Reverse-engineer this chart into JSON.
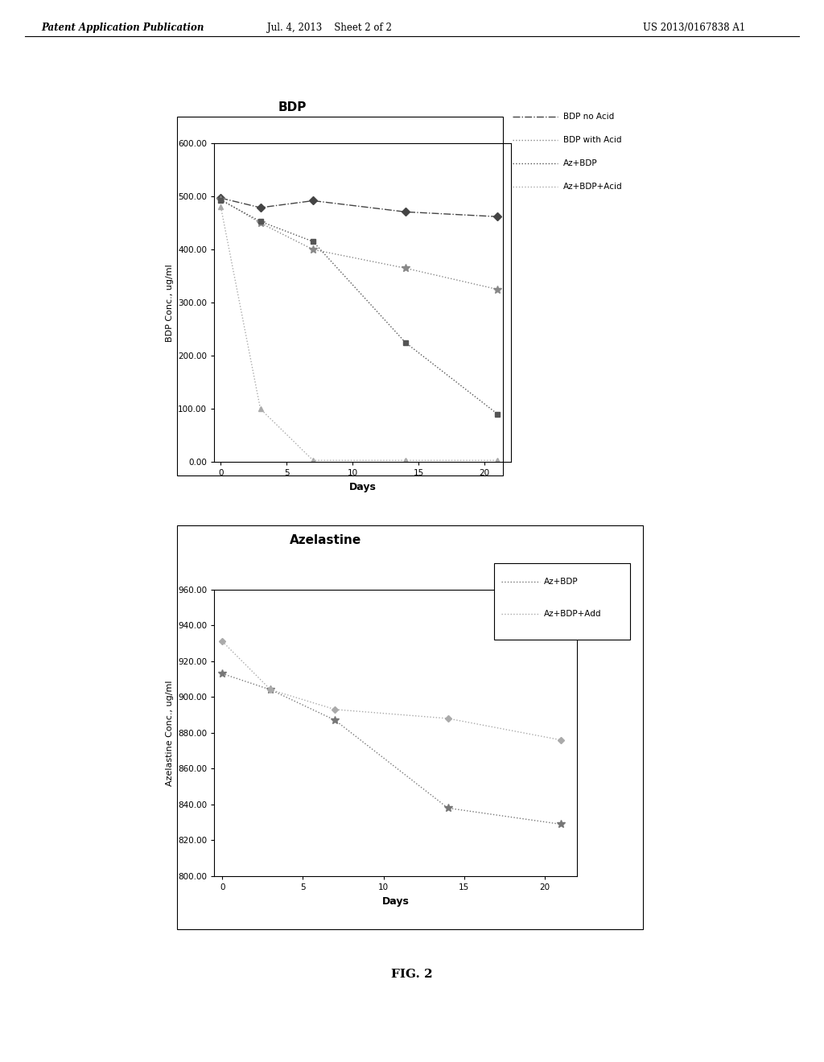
{
  "header_left": "Patent Application Publication",
  "header_center": "Jul. 4, 2013    Sheet 2 of 2",
  "header_right": "US 2013/0167838 A1",
  "fig_label": "FIG. 2",
  "chart1": {
    "title": "BDP",
    "xlabel": "Days",
    "ylabel": "BDP Conc., ug/ml",
    "ylim": [
      0,
      600
    ],
    "yticks": [
      0,
      100,
      200,
      300,
      400,
      500,
      600
    ],
    "ytick_labels": [
      "0.00",
      "100.00",
      "200.00",
      "300.00",
      "400.00",
      "500.00",
      "600.00"
    ],
    "xticks": [
      0,
      5,
      10,
      15,
      20
    ],
    "xlim": [
      -0.5,
      22
    ],
    "series": [
      {
        "label": "BDP no Acid",
        "x": [
          0,
          3,
          7,
          14,
          21
        ],
        "y": [
          497,
          479,
          492,
          471,
          462
        ],
        "color": "#444444",
        "linestyle": "-.",
        "marker": "D",
        "markersize": 5,
        "linewidth": 1.0
      },
      {
        "label": "BDP with Acid",
        "x": [
          0,
          3,
          7,
          14,
          21
        ],
        "y": [
          495,
          450,
          400,
          365,
          325
        ],
        "color": "#888888",
        "linestyle": ":",
        "marker": "*",
        "markersize": 7,
        "linewidth": 1.0
      },
      {
        "label": "Az+BDP",
        "x": [
          0,
          3,
          7,
          14,
          21
        ],
        "y": [
          493,
          453,
          415,
          225,
          90
        ],
        "color": "#555555",
        "linestyle": ":",
        "marker": "s",
        "markersize": 5,
        "linewidth": 1.0
      },
      {
        "label": "Az+BDP+Acid",
        "x": [
          0,
          3,
          7,
          14,
          21
        ],
        "y": [
          480,
          100,
          3,
          3,
          3
        ],
        "color": "#aaaaaa",
        "linestyle": ":",
        "marker": "^",
        "markersize": 5,
        "linewidth": 1.0
      }
    ]
  },
  "chart2": {
    "title": "Azelastine",
    "xlabel": "Days",
    "ylabel": "Azelastine Conc., ug/ml",
    "ylim": [
      800,
      960
    ],
    "yticks": [
      800,
      820,
      840,
      860,
      880,
      900,
      920,
      940,
      960
    ],
    "ytick_labels": [
      "800.00",
      "820.00",
      "840.00",
      "860.00",
      "880.00",
      "900.00",
      "920.00",
      "940.00",
      "960.00"
    ],
    "xticks": [
      0,
      5,
      10,
      15,
      20
    ],
    "xlim": [
      -0.5,
      22
    ],
    "series": [
      {
        "label": "Az+BDP",
        "x": [
          0,
          3,
          7,
          14,
          21
        ],
        "y": [
          913,
          904,
          887,
          838,
          829
        ],
        "color": "#777777",
        "linestyle": ":",
        "marker": "*",
        "markersize": 7,
        "linewidth": 1.0
      },
      {
        "label": "Az+BDP+Add",
        "x": [
          0,
          3,
          7,
          14,
          21
        ],
        "y": [
          931,
          904,
          893,
          888,
          876
        ],
        "color": "#aaaaaa",
        "linestyle": ":",
        "marker": "D",
        "markersize": 4,
        "linewidth": 1.0
      }
    ]
  }
}
